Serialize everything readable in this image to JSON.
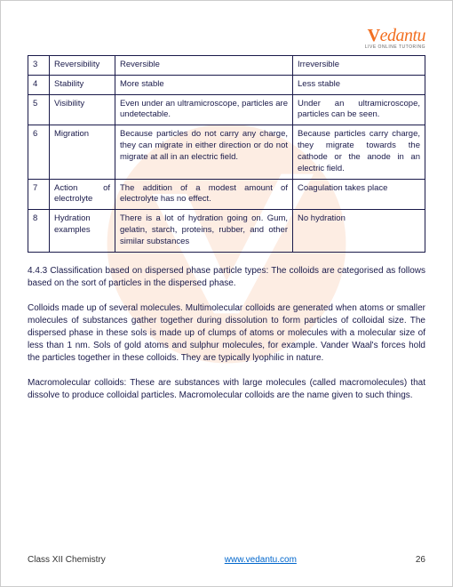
{
  "logo": {
    "text": "Vedantu",
    "tagline": "LIVE ONLINE TUTORING"
  },
  "table_rows": [
    {
      "num": "3",
      "property": "Reversibility",
      "colA": "Reversible",
      "colB": "Irreversible"
    },
    {
      "num": "4",
      "property": "Stability",
      "colA": "More stable",
      "colB": "Less stable"
    },
    {
      "num": "5",
      "property": "Visibility",
      "colA": "Even under an ultramicroscope, particles are undetectable.",
      "colB": "Under an ultramicroscope, particles can be seen."
    },
    {
      "num": "6",
      "property": "Migration",
      "colA": "Because particles do not carry any charge, they can migrate in either direction or do not migrate at all in an electric field.",
      "colB": "Because particles carry charge, they migrate towards the cathode or the anode in an electric field."
    },
    {
      "num": "7",
      "property": "Action of electrolyte",
      "colA": "The addition of a modest amount of electrolyte has no effect.",
      "colB": "Coagulation takes place"
    },
    {
      "num": "8",
      "property": "Hydration examples",
      "colA": "There is a lot of hydration going on. Gum, gelatin, starch, proteins, rubber, and other similar substances",
      "colB": "No hydration"
    }
  ],
  "p1": "4.4.3 Classification based on dispersed phase particle types: The colloids are categorised as follows based on the sort of particles in the dispersed phase.",
  "p2": "Colloids made up of several molecules. Multimolecular colloids are generated when atoms or smaller molecules of substances gather together during dissolution to form particles of colloidal size. The dispersed phase in these sols is made up of clumps of atoms or molecules with a molecular size of less than 1 nm. Sols of gold atoms and sulphur molecules, for example. Vander Waal's forces hold the particles together in these colloids. They are typically lyophilic in nature.",
  "p3": "Macromolecular colloids: These are substances with large molecules (called macromolecules) that dissolve to produce colloidal particles. Macromolecular colloids are the name given to such things.",
  "footer": {
    "left": "Class XII Chemistry",
    "link": "www.vedantu.com",
    "page": "26"
  }
}
